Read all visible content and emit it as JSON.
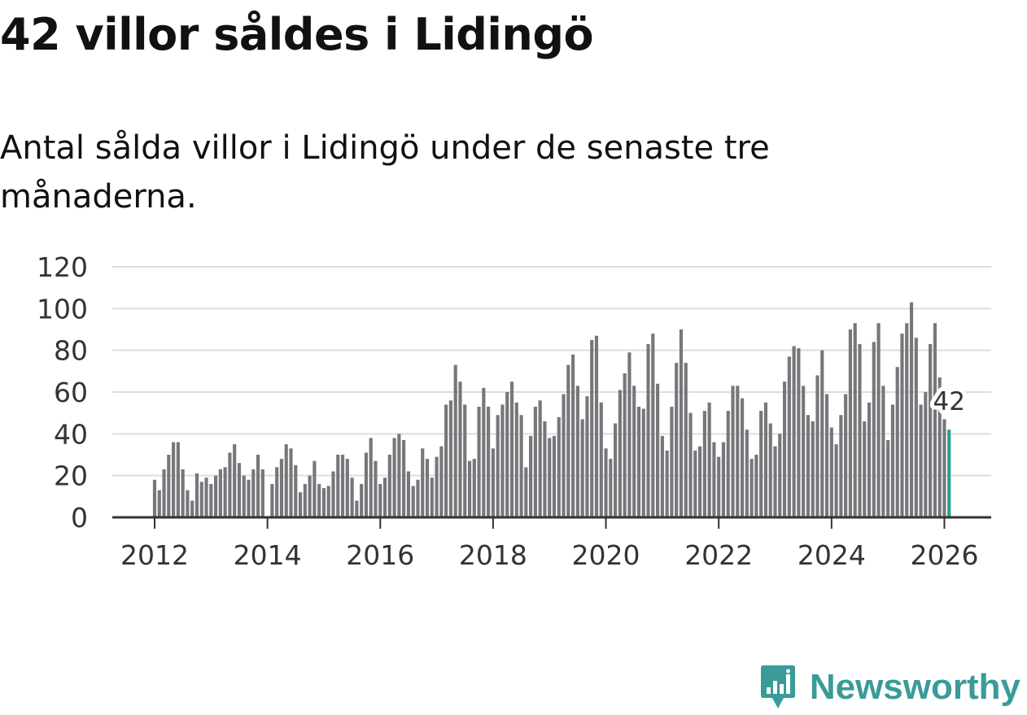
{
  "header": {
    "title": "42 villor såldes i Lidingö",
    "subtitle": "Antal sålda villor i Lidingö under de senaste tre månaderna."
  },
  "colors": {
    "bar": "#77767b",
    "highlight": "#2a9d92",
    "grid": "#dddddd",
    "axis": "#333333",
    "brand": "#3a9b98"
  },
  "chart_data": {
    "type": "bar",
    "title": "",
    "xlabel": "",
    "ylabel": "",
    "ylim": [
      0,
      120
    ],
    "yticks": [
      0,
      20,
      40,
      60,
      80,
      100,
      120
    ],
    "xlim": [
      2011.25,
      2026.83
    ],
    "xticks": [
      2012,
      2014,
      2016,
      2018,
      2020,
      2022,
      2024,
      2026
    ],
    "x_start": 2012.0,
    "x_step": 0.0833333,
    "values": [
      18,
      13,
      23,
      30,
      36,
      36,
      23,
      13,
      8,
      21,
      17,
      19,
      16,
      20,
      23,
      24,
      31,
      35,
      26,
      20,
      18,
      23,
      30,
      23,
      0,
      16,
      24,
      28,
      35,
      33,
      25,
      12,
      16,
      20,
      27,
      16,
      14,
      15,
      22,
      30,
      30,
      28,
      19,
      8,
      16,
      31,
      38,
      27,
      16,
      19,
      30,
      38,
      40,
      37,
      22,
      15,
      18,
      33,
      28,
      19,
      29,
      34,
      54,
      56,
      73,
      65,
      54,
      27,
      28,
      53,
      62,
      53,
      33,
      49,
      54,
      60,
      65,
      55,
      49,
      24,
      39,
      53,
      56,
      46,
      38,
      39,
      48,
      59,
      73,
      78,
      63,
      47,
      58,
      85,
      87,
      55,
      33,
      28,
      45,
      61,
      69,
      79,
      63,
      53,
      52,
      83,
      88,
      64,
      39,
      32,
      53,
      74,
      90,
      74,
      50,
      32,
      34,
      51,
      55,
      36,
      29,
      36,
      51,
      63,
      63,
      57,
      42,
      28,
      30,
      51,
      55,
      45,
      34,
      40,
      65,
      77,
      82,
      81,
      63,
      49,
      46,
      68,
      80,
      59,
      43,
      35,
      49,
      59,
      90,
      93,
      83,
      46,
      55,
      84,
      93,
      63,
      37,
      54,
      72,
      88,
      93,
      103,
      86,
      54,
      60,
      83,
      93,
      67,
      47,
      42
    ],
    "highlight_last": true,
    "annotation": {
      "label": "42",
      "value": 42
    }
  },
  "brand": {
    "name": "Newsworthy"
  }
}
